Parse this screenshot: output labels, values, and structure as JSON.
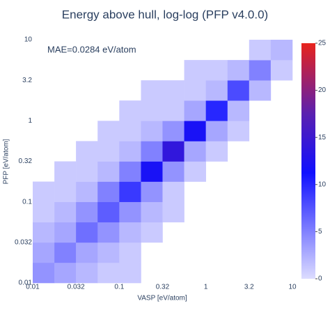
{
  "chart_data": {
    "type": "heatmap2d",
    "title": "Energy above hull, log-log (PFP v4.0.0)",
    "annotation": "MAE=0.0284 eV/atom",
    "xlabel": "VASP [eV/atom]",
    "ylabel": "PFP [eV/atom]",
    "log_x": true,
    "log_y": true,
    "grid": false,
    "xlim": [
      0.01,
      10
    ],
    "ylim": [
      0.01,
      10
    ],
    "xticks": [
      0.01,
      {
        "value": 0.0316,
        "label": "0.032"
      },
      0.1,
      {
        "value": 0.316,
        "label": "0.32"
      },
      1,
      {
        "value": 3.16,
        "label": "3.2"
      },
      10
    ],
    "yticks": [
      0.01,
      {
        "value": 0.0316,
        "label": "0.032"
      },
      0.1,
      {
        "value": 0.316,
        "label": "0.32"
      },
      1,
      {
        "value": 3.16,
        "label": "3.2"
      },
      10
    ],
    "xbins": [
      0.01,
      0.0178,
      0.0316,
      0.0562,
      0.1,
      0.178,
      0.316,
      0.562,
      1,
      1.78,
      3.16,
      5.62,
      10
    ],
    "ybins": [
      0.01,
      0.0178,
      0.0316,
      0.0562,
      0.1,
      0.178,
      0.316,
      0.562,
      1,
      1.78,
      3.16,
      5.62,
      10
    ],
    "z": [
      [
        4,
        3,
        2,
        1,
        1,
        0,
        0,
        0,
        0,
        0,
        0,
        0
      ],
      [
        3,
        5,
        3,
        2,
        1,
        0,
        0,
        0,
        0,
        0,
        0,
        0
      ],
      [
        2,
        3,
        6,
        4,
        2,
        1,
        0,
        0,
        0,
        0,
        0,
        0
      ],
      [
        1,
        2,
        4,
        7,
        4,
        2,
        1,
        0,
        0,
        0,
        0,
        0
      ],
      [
        1,
        1,
        2,
        5,
        9,
        4,
        1,
        0,
        0,
        0,
        0,
        0
      ],
      [
        0,
        1,
        1,
        2,
        5,
        12,
        4,
        1,
        0,
        0,
        0,
        0
      ],
      [
        0,
        0,
        1,
        1,
        2,
        5,
        14,
        3,
        1,
        0,
        0,
        0
      ],
      [
        0,
        0,
        0,
        1,
        1,
        2,
        4,
        12,
        3,
        1,
        0,
        0
      ],
      [
        0,
        0,
        0,
        0,
        1,
        1,
        1,
        3,
        10,
        2,
        0,
        0
      ],
      [
        0,
        0,
        0,
        0,
        0,
        1,
        1,
        1,
        2,
        8,
        2,
        0
      ],
      [
        0,
        0,
        0,
        0,
        0,
        0,
        0,
        1,
        1,
        2,
        5,
        1
      ],
      [
        0,
        0,
        0,
        0,
        0,
        0,
        0,
        0,
        0,
        0,
        1,
        2
      ]
    ],
    "zlim": [
      0,
      25
    ],
    "zticks": [
      0,
      5,
      10,
      15,
      20,
      25
    ],
    "colorscale": [
      [
        0,
        "#dcdcff"
      ],
      [
        0.45,
        "#1010ff"
      ],
      [
        0.7,
        "#5a20b0"
      ],
      [
        1,
        "#e8231c"
      ]
    ]
  }
}
